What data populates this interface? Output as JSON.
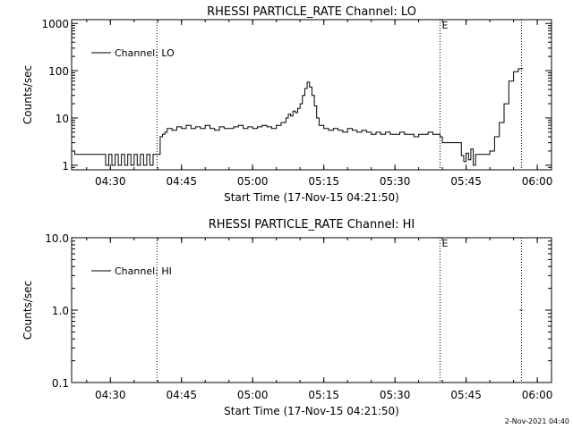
{
  "chart_data": [
    {
      "type": "line",
      "title": "RHESSI PARTICLE_RATE Channel: LO",
      "xlabel": "Start Time (17-Nov-15 04:21:50)",
      "ylabel": "Counts/sec",
      "y_scale": "log",
      "ylim": [
        0.8,
        1200
      ],
      "x_range": [
        "04:21:50",
        "06:03:00"
      ],
      "x_ticks": [
        "04:30",
        "04:45",
        "05:00",
        "05:15",
        "05:30",
        "05:45",
        "06:00"
      ],
      "y_ticks": [
        "1",
        "10",
        "100",
        "1000"
      ],
      "legend": {
        "entry": "Channel: LO",
        "placement": "top-left"
      },
      "markers": [
        {
          "time": "04:39:50",
          "label": ""
        },
        {
          "time": "05:39:30",
          "label": "E"
        },
        {
          "time": "05:56:40",
          "label": ""
        }
      ],
      "series": [
        {
          "name": "Channel: LO",
          "x": [
            "04:21:50",
            "04:22:30",
            "04:23:00",
            "04:28:00",
            "04:28:30",
            "04:29:00",
            "04:29:30",
            "04:29:40",
            "04:30:10",
            "04:30:20",
            "04:30:50",
            "04:31:00",
            "04:31:30",
            "04:31:40",
            "04:32:10",
            "04:32:20",
            "04:32:50",
            "04:33:00",
            "04:33:30",
            "04:33:40",
            "04:34:10",
            "04:34:20",
            "04:34:50",
            "04:35:00",
            "04:35:30",
            "04:35:40",
            "04:36:10",
            "04:36:20",
            "04:36:50",
            "04:37:00",
            "04:37:30",
            "04:37:40",
            "04:38:10",
            "04:38:20",
            "04:38:50",
            "04:39:00",
            "04:39:30",
            "04:40:00",
            "04:40:30",
            "04:41:00",
            "04:41:30",
            "04:42:00",
            "04:43:00",
            "04:44:00",
            "04:45:00",
            "04:46:00",
            "04:47:00",
            "04:48:00",
            "04:49:00",
            "04:50:00",
            "04:51:00",
            "04:52:00",
            "04:53:00",
            "04:54:00",
            "04:55:00",
            "04:56:00",
            "04:57:00",
            "04:58:00",
            "04:59:00",
            "05:00:00",
            "05:01:00",
            "05:02:00",
            "05:03:00",
            "05:04:00",
            "05:05:00",
            "05:06:00",
            "05:07:00",
            "05:07:30",
            "05:08:00",
            "05:08:30",
            "05:09:00",
            "05:09:30",
            "05:10:00",
            "05:10:30",
            "05:11:00",
            "05:11:30",
            "05:12:00",
            "05:12:30",
            "05:13:00",
            "05:13:30",
            "05:14:00",
            "05:15:00",
            "05:16:00",
            "05:17:00",
            "05:18:00",
            "05:19:00",
            "05:20:00",
            "05:21:00",
            "05:22:00",
            "05:23:00",
            "05:24:00",
            "05:25:00",
            "05:26:00",
            "05:27:00",
            "05:28:00",
            "05:29:00",
            "05:30:00",
            "05:31:00",
            "05:32:00",
            "05:33:00",
            "05:34:00",
            "05:35:00",
            "05:36:00",
            "05:37:00",
            "05:38:00",
            "05:39:00",
            "05:39:30",
            "05:40:00",
            "05:41:00",
            "05:42:00",
            "05:43:00",
            "05:43:30",
            "05:44:00",
            "05:44:30",
            "05:45:00",
            "05:45:30",
            "05:46:00",
            "05:46:30",
            "05:47:00",
            "05:48:00",
            "05:49:00",
            "05:50:00",
            "05:51:00",
            "05:52:00",
            "05:53:00",
            "05:54:00",
            "05:55:00",
            "05:56:00",
            "05:57:00"
          ],
          "values": [
            2,
            1.7,
            1.7,
            1.7,
            1.7,
            1,
            1,
            1.7,
            1.7,
            1,
            1,
            1.7,
            1.7,
            1,
            1,
            1.7,
            1.7,
            1,
            1,
            1.7,
            1.7,
            1,
            1,
            1.7,
            1.7,
            1,
            1,
            1.7,
            1.7,
            1,
            1,
            1.7,
            1.7,
            1,
            1,
            1.7,
            1.7,
            1.7,
            4,
            4.5,
            5,
            6,
            5.5,
            6.5,
            6,
            7,
            6,
            6.5,
            6,
            7,
            6,
            5.5,
            6.5,
            6,
            6,
            6.5,
            7,
            6,
            6.5,
            6,
            6.5,
            7,
            6.5,
            6,
            7,
            8,
            10,
            12,
            11,
            14,
            13,
            16,
            20,
            30,
            42,
            57,
            45,
            30,
            18,
            10,
            7,
            6,
            5.5,
            6,
            5.5,
            5,
            6,
            5.5,
            5,
            5.5,
            5,
            4.5,
            5,
            4.5,
            5,
            4.5,
            4.5,
            5,
            4.5,
            4.5,
            4,
            4.5,
            4.5,
            5,
            4.5,
            4.5,
            4,
            3,
            3,
            3,
            3,
            3,
            1.6,
            1.2,
            1.8,
            1.3,
            2.2,
            1,
            1.7,
            1.7,
            1.7,
            2,
            4,
            8,
            20,
            60,
            95,
            110,
            110
          ]
        }
      ]
    },
    {
      "type": "line",
      "title": "RHESSI PARTICLE_RATE Channel: HI",
      "xlabel": "Start Time (17-Nov-15 04:21:50)",
      "ylabel": "Counts/sec",
      "y_scale": "log",
      "ylim": [
        0.1,
        10
      ],
      "x_range": [
        "04:21:50",
        "06:03:00"
      ],
      "x_ticks": [
        "04:30",
        "04:45",
        "05:00",
        "05:15",
        "05:30",
        "05:45",
        "06:00"
      ],
      "y_ticks": [
        "0.1",
        "1.0",
        "10.0"
      ],
      "legend": {
        "entry": "Channel: HI",
        "placement": "top-left"
      },
      "markers": [
        {
          "time": "04:39:50",
          "label": ""
        },
        {
          "time": "05:39:30",
          "label": "E"
        },
        {
          "time": "05:56:40",
          "label": ""
        }
      ],
      "series": [
        {
          "name": "Channel: HI",
          "x": [
            "05:56:20",
            "05:56:50"
          ],
          "values": [
            1.0,
            1.0
          ]
        }
      ]
    }
  ],
  "footer": {
    "timestamp": "2-Nov-2021 04:40"
  }
}
